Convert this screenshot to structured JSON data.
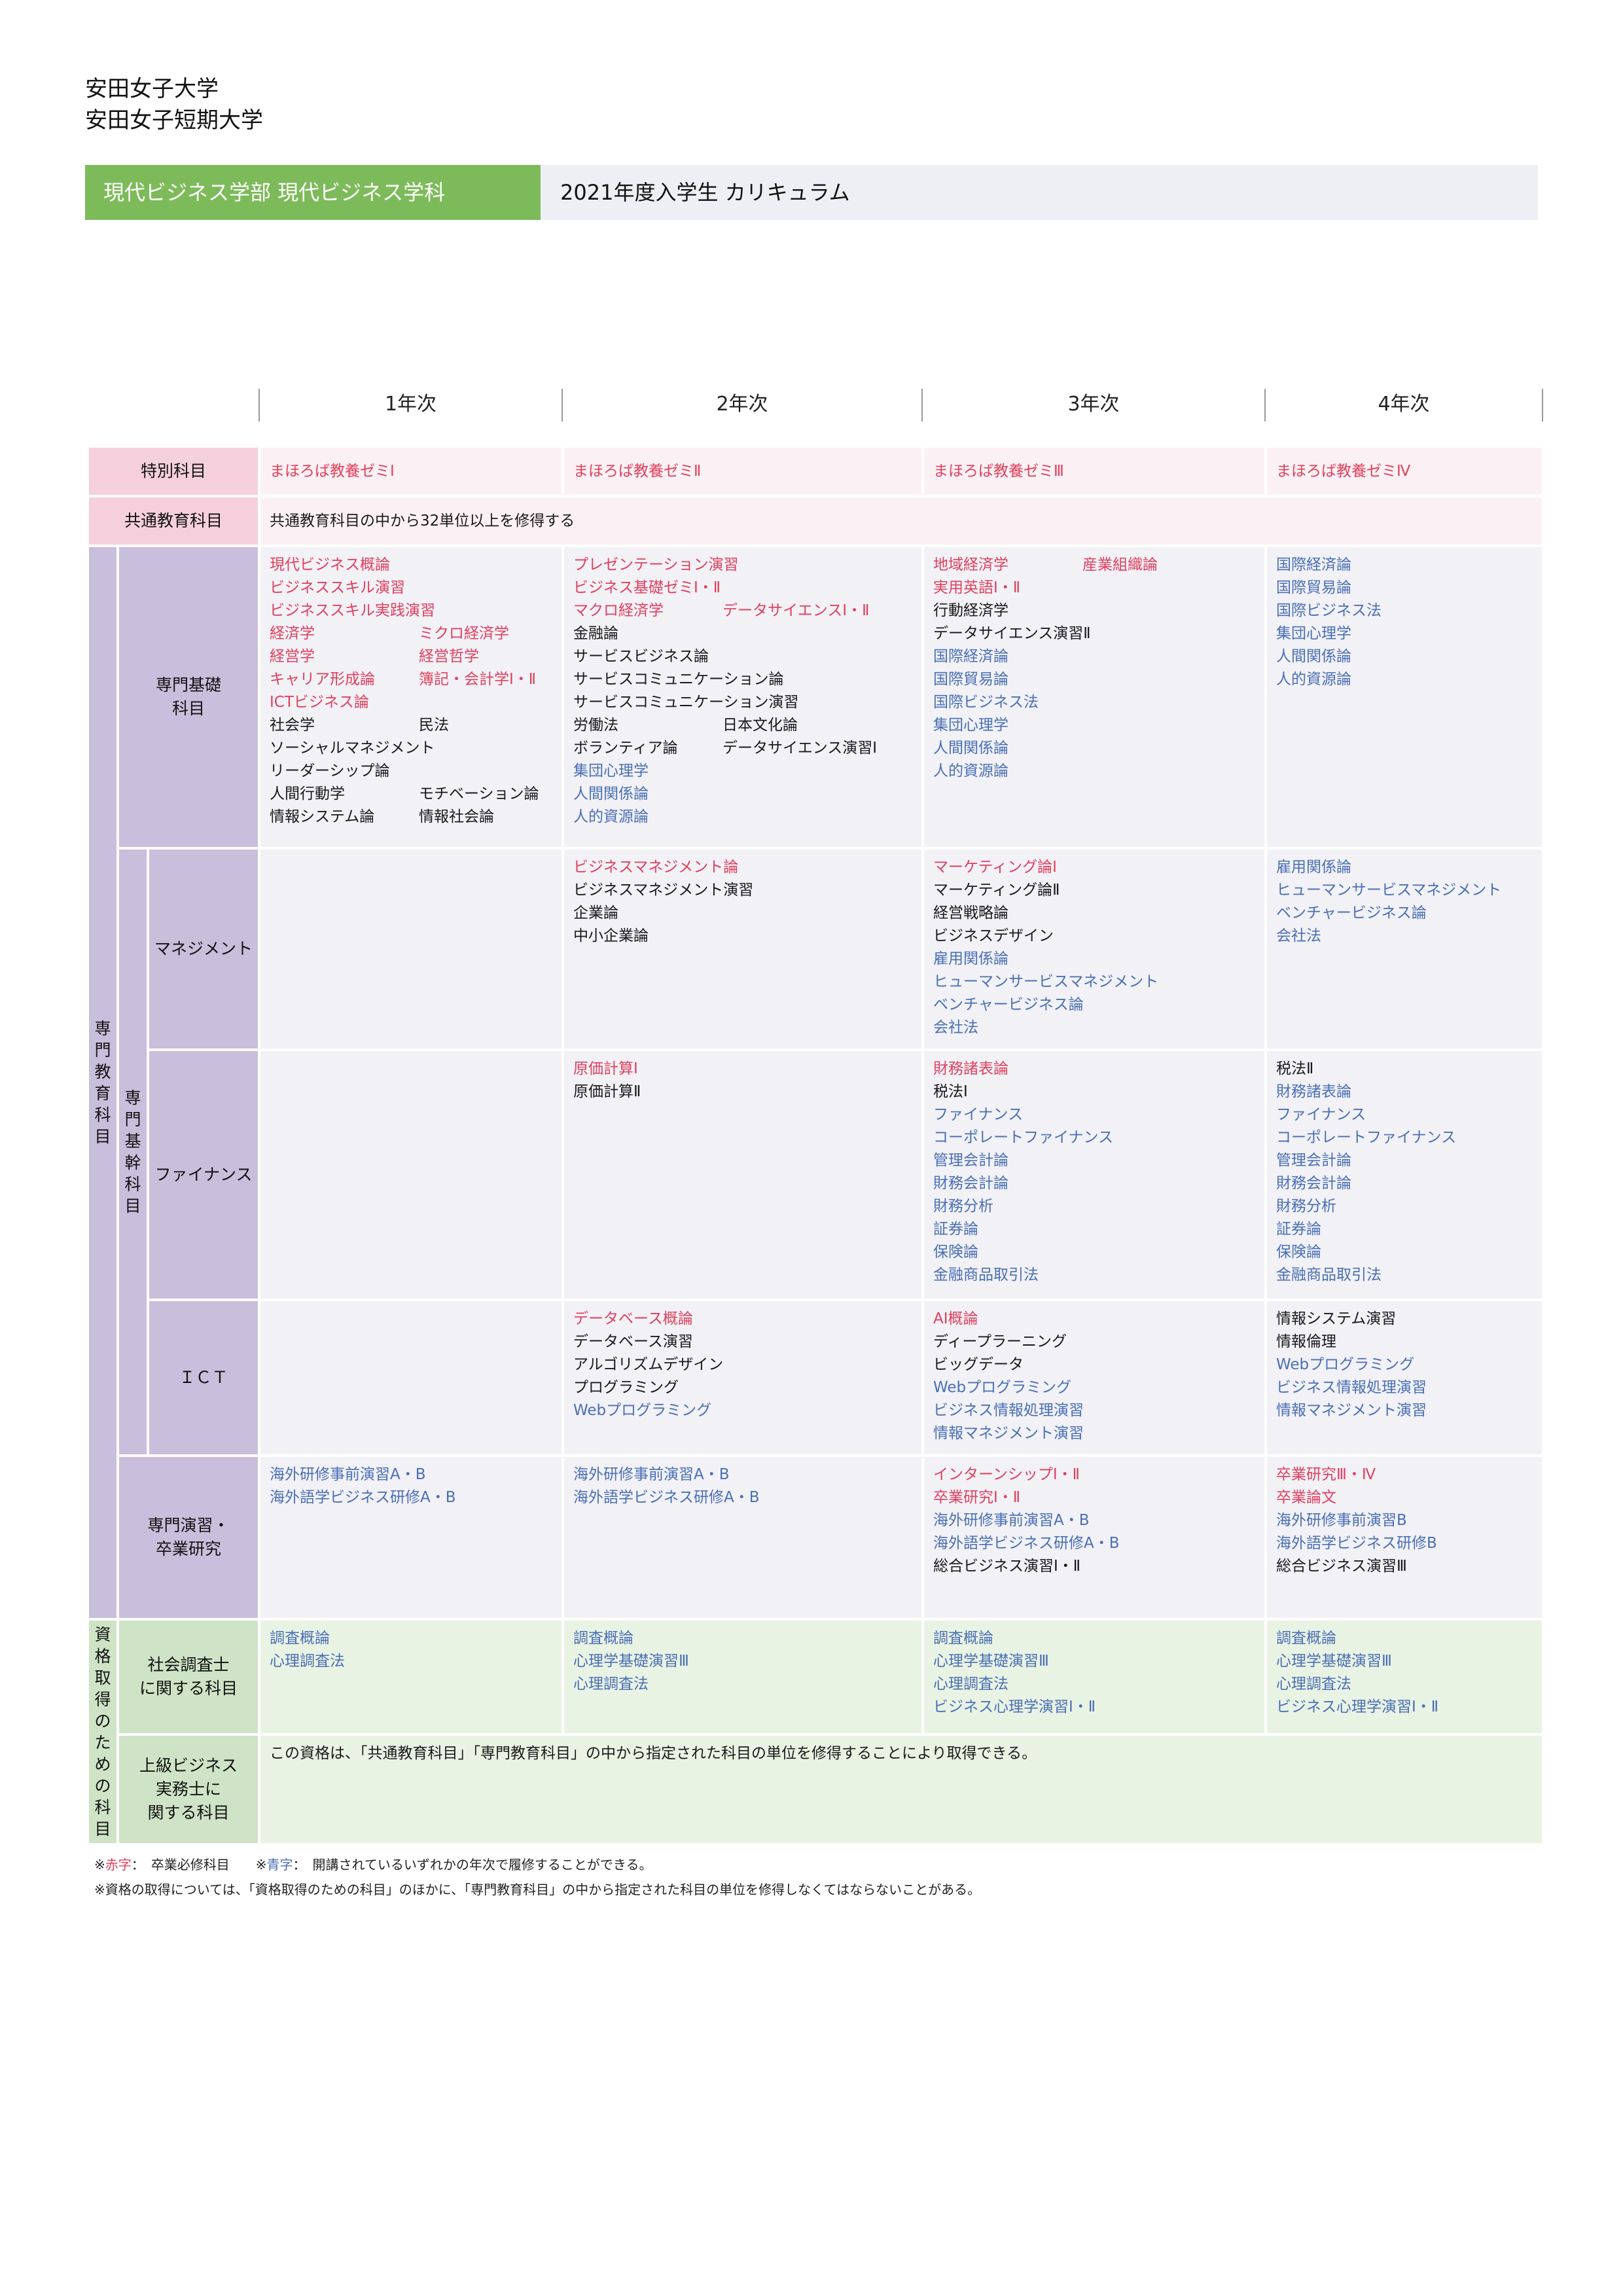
{
  "header": {
    "university_1": "安田女子大学",
    "university_2": "安田女子短期大学",
    "department": "現代ビジネス学部 現代ビジネス学科",
    "curriculum_title": "2021年度入学生 カリキュラム"
  },
  "years": [
    "1年次",
    "2年次",
    "3年次",
    "4年次"
  ],
  "colors": {
    "required": "#e0405e",
    "open_year": "#4a6fb4",
    "dept_band": "#7dbb5a",
    "special_band": "#f5d0dc",
    "specialty_band": "#c8bfdc",
    "qualification_band": "#cfe3c6"
  },
  "labels": {
    "special": "特別科目",
    "common": "共通教育科目",
    "specialty_vertical": "専門教育科目",
    "core_vertical": "専門基幹科目",
    "basic": "専門基礎\n科目",
    "management": "マネジメント",
    "finance": "ファイナンス",
    "ict": "ＩＣＴ",
    "seminar": "専門演習・\n卒業研究",
    "qualification_vertical": "資格取得のための科目",
    "social_research": "社会調査士\nに関する科目",
    "business": "上級ビジネス\n実務士に\n関する科目"
  },
  "rows": {
    "special": [
      [
        {
          "t": "まほろば教養ゼミⅠ",
          "c": "req"
        }
      ],
      [
        {
          "t": "まほろば教養ゼミⅡ",
          "c": "req"
        }
      ],
      [
        {
          "t": "まほろば教養ゼミⅢ",
          "c": "req"
        }
      ],
      [
        {
          "t": "まほろば教養ゼミⅣ",
          "c": "req"
        }
      ]
    ],
    "common_text": "共通教育科目の中から32単位以上を修得する",
    "basic": [
      [
        [
          {
            "t": "現代ビジネス概論",
            "c": "req"
          }
        ],
        [
          {
            "t": "ビジネススキル演習",
            "c": "req"
          }
        ],
        [
          {
            "t": "ビジネススキル実践演習",
            "c": "req"
          }
        ],
        [
          {
            "t": "経済学",
            "c": "req"
          },
          {
            "t": "ミクロ経済学",
            "c": "req"
          }
        ],
        [
          {
            "t": "経営学",
            "c": "req"
          },
          {
            "t": "経営哲学",
            "c": "req"
          }
        ],
        [
          {
            "t": "キャリア形成論",
            "c": "req"
          },
          {
            "t": "簿記・会計学Ⅰ・Ⅱ",
            "c": "req"
          }
        ],
        [
          {
            "t": "ICTビジネス論",
            "c": "req"
          }
        ],
        [
          {
            "t": "社会学",
            "c": "norm"
          },
          {
            "t": "民法",
            "c": "norm"
          }
        ],
        [
          {
            "t": "ソーシャルマネジメント",
            "c": "norm"
          }
        ],
        [
          {
            "t": "リーダーシップ論",
            "c": "norm"
          }
        ],
        [
          {
            "t": "人間行動学",
            "c": "norm"
          },
          {
            "t": "モチベーション論",
            "c": "norm"
          }
        ],
        [
          {
            "t": "情報システム論",
            "c": "norm"
          },
          {
            "t": "情報社会論",
            "c": "norm"
          }
        ]
      ],
      [
        [
          {
            "t": "プレゼンテーション演習",
            "c": "req"
          }
        ],
        [
          {
            "t": "ビジネス基礎ゼミⅠ・Ⅱ",
            "c": "req"
          }
        ],
        [
          {
            "t": "マクロ経済学",
            "c": "req"
          },
          {
            "t": "データサイエンスⅠ・Ⅱ",
            "c": "req"
          }
        ],
        [
          {
            "t": "金融論",
            "c": "norm"
          }
        ],
        [
          {
            "t": "サービスビジネス論",
            "c": "norm"
          }
        ],
        [
          {
            "t": "サービスコミュニケーション論",
            "c": "norm"
          }
        ],
        [
          {
            "t": "サービスコミュニケーション演習",
            "c": "norm"
          }
        ],
        [
          {
            "t": "労働法",
            "c": "norm"
          },
          {
            "t": "日本文化論",
            "c": "norm"
          }
        ],
        [
          {
            "t": "ボランティア論",
            "c": "norm"
          },
          {
            "t": "データサイエンス演習Ⅰ",
            "c": "norm"
          }
        ],
        [
          {
            "t": "集団心理学",
            "c": "open"
          }
        ],
        [
          {
            "t": "人間関係論",
            "c": "open"
          }
        ],
        [
          {
            "t": "人的資源論",
            "c": "open"
          }
        ]
      ],
      [
        [
          {
            "t": "地域経済学",
            "c": "req"
          },
          {
            "t": "産業組織論",
            "c": "req"
          }
        ],
        [
          {
            "t": "実用英語Ⅰ・Ⅱ",
            "c": "req"
          }
        ],
        [
          {
            "t": "行動経済学",
            "c": "norm"
          }
        ],
        [
          {
            "t": "データサイエンス演習Ⅱ",
            "c": "norm"
          }
        ],
        [
          {
            "t": "国際経済論",
            "c": "open"
          }
        ],
        [
          {
            "t": "国際貿易論",
            "c": "open"
          }
        ],
        [
          {
            "t": "国際ビジネス法",
            "c": "open"
          }
        ],
        [
          {
            "t": "集団心理学",
            "c": "open"
          }
        ],
        [
          {
            "t": "人間関係論",
            "c": "open"
          }
        ],
        [
          {
            "t": "人的資源論",
            "c": "open"
          }
        ]
      ],
      [
        [
          {
            "t": "国際経済論",
            "c": "open"
          }
        ],
        [
          {
            "t": "国際貿易論",
            "c": "open"
          }
        ],
        [
          {
            "t": "国際ビジネス法",
            "c": "open"
          }
        ],
        [
          {
            "t": "集団心理学",
            "c": "open"
          }
        ],
        [
          {
            "t": "人間関係論",
            "c": "open"
          }
        ],
        [
          {
            "t": "人的資源論",
            "c": "open"
          }
        ]
      ]
    ],
    "management": [
      [],
      [
        [
          {
            "t": "ビジネスマネジメント論",
            "c": "req"
          }
        ],
        [
          {
            "t": "ビジネスマネジメント演習",
            "c": "norm"
          }
        ],
        [
          {
            "t": "企業論",
            "c": "norm"
          }
        ],
        [
          {
            "t": "中小企業論",
            "c": "norm"
          }
        ]
      ],
      [
        [
          {
            "t": "マーケティング論Ⅰ",
            "c": "req"
          }
        ],
        [
          {
            "t": "マーケティング論Ⅱ",
            "c": "norm"
          }
        ],
        [
          {
            "t": "経営戦略論",
            "c": "norm"
          }
        ],
        [
          {
            "t": "ビジネスデザイン",
            "c": "norm"
          }
        ],
        [
          {
            "t": "雇用関係論",
            "c": "open"
          }
        ],
        [
          {
            "t": "ヒューマンサービスマネジメント",
            "c": "open"
          }
        ],
        [
          {
            "t": "ベンチャービジネス論",
            "c": "open"
          }
        ],
        [
          {
            "t": "会社法",
            "c": "open"
          }
        ]
      ],
      [
        [
          {
            "t": "雇用関係論",
            "c": "open"
          }
        ],
        [
          {
            "t": "ヒューマンサービスマネジメント",
            "c": "open"
          }
        ],
        [
          {
            "t": "ベンチャービジネス論",
            "c": "open"
          }
        ],
        [
          {
            "t": "会社法",
            "c": "open"
          }
        ]
      ]
    ],
    "finance": [
      [],
      [
        [
          {
            "t": "原価計算Ⅰ",
            "c": "req"
          }
        ],
        [
          {
            "t": "原価計算Ⅱ",
            "c": "norm"
          }
        ]
      ],
      [
        [
          {
            "t": "財務諸表論",
            "c": "req"
          }
        ],
        [
          {
            "t": "税法Ⅰ",
            "c": "norm"
          }
        ],
        [
          {
            "t": "ファイナンス",
            "c": "open"
          }
        ],
        [
          {
            "t": "コーポレートファイナンス",
            "c": "open"
          }
        ],
        [
          {
            "t": "管理会計論",
            "c": "open"
          }
        ],
        [
          {
            "t": "財務会計論",
            "c": "open"
          }
        ],
        [
          {
            "t": "財務分析",
            "c": "open"
          }
        ],
        [
          {
            "t": "証券論",
            "c": "open"
          }
        ],
        [
          {
            "t": "保険論",
            "c": "open"
          }
        ],
        [
          {
            "t": "金融商品取引法",
            "c": "open"
          }
        ]
      ],
      [
        [
          {
            "t": "税法Ⅱ",
            "c": "norm"
          }
        ],
        [
          {
            "t": "財務諸表論",
            "c": "open"
          }
        ],
        [
          {
            "t": "ファイナンス",
            "c": "open"
          }
        ],
        [
          {
            "t": "コーポレートファイナンス",
            "c": "open"
          }
        ],
        [
          {
            "t": "管理会計論",
            "c": "open"
          }
        ],
        [
          {
            "t": "財務会計論",
            "c": "open"
          }
        ],
        [
          {
            "t": "財務分析",
            "c": "open"
          }
        ],
        [
          {
            "t": "証券論",
            "c": "open"
          }
        ],
        [
          {
            "t": "保険論",
            "c": "open"
          }
        ],
        [
          {
            "t": "金融商品取引法",
            "c": "open"
          }
        ]
      ]
    ],
    "ict": [
      [],
      [
        [
          {
            "t": "データベース概論",
            "c": "req"
          }
        ],
        [
          {
            "t": "データベース演習",
            "c": "norm"
          }
        ],
        [
          {
            "t": "アルゴリズムデザイン",
            "c": "norm"
          }
        ],
        [
          {
            "t": "プログラミング",
            "c": "norm"
          }
        ],
        [
          {
            "t": "Webプログラミング",
            "c": "open"
          }
        ]
      ],
      [
        [
          {
            "t": "AI概論",
            "c": "req"
          }
        ],
        [
          {
            "t": "ディープラーニング",
            "c": "norm"
          }
        ],
        [
          {
            "t": "ビッグデータ",
            "c": "norm"
          }
        ],
        [
          {
            "t": "Webプログラミング",
            "c": "open"
          }
        ],
        [
          {
            "t": "ビジネス情報処理演習",
            "c": "open"
          }
        ],
        [
          {
            "t": "情報マネジメント演習",
            "c": "open"
          }
        ]
      ],
      [
        [
          {
            "t": "情報システム演習",
            "c": "norm"
          }
        ],
        [
          {
            "t": "情報倫理",
            "c": "norm"
          }
        ],
        [
          {
            "t": "Webプログラミング",
            "c": "open"
          }
        ],
        [
          {
            "t": "ビジネス情報処理演習",
            "c": "open"
          }
        ],
        [
          {
            "t": "情報マネジメント演習",
            "c": "open"
          }
        ]
      ]
    ],
    "seminar": [
      [
        [
          {
            "t": "海外研修事前演習A・B",
            "c": "open"
          }
        ],
        [
          {
            "t": "海外語学ビジネス研修A・B",
            "c": "open"
          }
        ]
      ],
      [
        [
          {
            "t": "海外研修事前演習A・B",
            "c": "open"
          }
        ],
        [
          {
            "t": "海外語学ビジネス研修A・B",
            "c": "open"
          }
        ]
      ],
      [
        [
          {
            "t": "インターンシップⅠ・Ⅱ",
            "c": "req"
          }
        ],
        [
          {
            "t": "卒業研究Ⅰ・Ⅱ",
            "c": "req"
          }
        ],
        [
          {
            "t": "海外研修事前演習A・B",
            "c": "open"
          }
        ],
        [
          {
            "t": "海外語学ビジネス研修A・B",
            "c": "open"
          }
        ],
        [
          {
            "t": "総合ビジネス演習Ⅰ・Ⅱ",
            "c": "norm"
          }
        ]
      ],
      [
        [
          {
            "t": "卒業研究Ⅲ・Ⅳ",
            "c": "req"
          }
        ],
        [
          {
            "t": "卒業論文",
            "c": "req"
          }
        ],
        [
          {
            "t": "海外研修事前演習B",
            "c": "open"
          }
        ],
        [
          {
            "t": "海外語学ビジネス研修B",
            "c": "open"
          }
        ],
        [
          {
            "t": "総合ビジネス演習Ⅲ",
            "c": "norm"
          }
        ]
      ]
    ],
    "social_research": [
      [
        [
          {
            "t": "調査概論",
            "c": "open"
          }
        ],
        [
          {
            "t": "心理調査法",
            "c": "open"
          }
        ]
      ],
      [
        [
          {
            "t": "調査概論",
            "c": "open"
          }
        ],
        [
          {
            "t": "心理学基礎演習Ⅲ",
            "c": "open"
          }
        ],
        [
          {
            "t": "心理調査法",
            "c": "open"
          }
        ]
      ],
      [
        [
          {
            "t": "調査概論",
            "c": "open"
          }
        ],
        [
          {
            "t": "心理学基礎演習Ⅲ",
            "c": "open"
          }
        ],
        [
          {
            "t": "心理調査法",
            "c": "open"
          }
        ],
        [
          {
            "t": "ビジネス心理学演習Ⅰ・Ⅱ",
            "c": "open"
          }
        ]
      ],
      [
        [
          {
            "t": "調査概論",
            "c": "open"
          }
        ],
        [
          {
            "t": "心理学基礎演習Ⅲ",
            "c": "open"
          }
        ],
        [
          {
            "t": "心理調査法",
            "c": "open"
          }
        ],
        [
          {
            "t": "ビジネス心理学演習Ⅰ・Ⅱ",
            "c": "open"
          }
        ]
      ]
    ],
    "business_text": "この資格は、「共通教育科目」「専門教育科目」の中から指定された科目の単位を修得することにより取得できる。"
  },
  "notes": {
    "mark_prefix": "※",
    "red_label": "赤字",
    "red_desc": "：　卒業必修科目　",
    "blue_label": "青字",
    "blue_desc": "：　開講されているいずれかの年次で履修することができる。",
    "note2": "※資格の取得については、「資格取得のための科目」のほかに、「専門教育科目」の中から指定された科目の単位を修得しなくてはならないことがある。"
  }
}
